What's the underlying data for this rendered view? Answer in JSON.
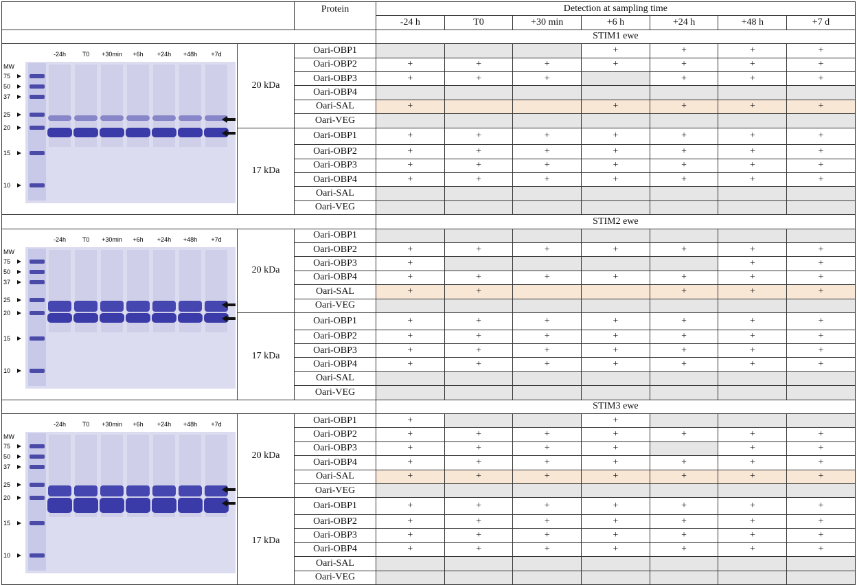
{
  "table": {
    "header": {
      "protein": "Protein",
      "detection": "Detection at sampling time",
      "times": [
        "-24 h",
        "T0",
        "+30 min",
        "+6 h",
        "+24 h",
        "+48 h",
        "+7 d"
      ]
    },
    "sections": [
      {
        "title": "STIM1 ewe",
        "gel": {
          "mw": "MW",
          "markers": [
            "75",
            "50",
            "37",
            "25",
            "20",
            "15",
            "10"
          ],
          "lanes": [
            "-24h",
            "T0",
            "+30min",
            "+6h",
            "+24h",
            "+48h",
            "+7d"
          ]
        },
        "groups": [
          {
            "band": "20 kDa",
            "rows": [
              {
                "protein": "Oari-OBP1",
                "cells": [
                  null,
                  null,
                  null,
                  "+",
                  "+",
                  "+",
                  "+"
                ]
              },
              {
                "protein": "Oari-OBP2",
                "cells": [
                  "+",
                  "+",
                  "+",
                  "+",
                  "+",
                  "+",
                  "+"
                ]
              },
              {
                "protein": "Oari-OBP3",
                "cells": [
                  "+",
                  "+",
                  "+",
                  null,
                  "+",
                  "+",
                  "+"
                ]
              },
              {
                "protein": "Oari-OBP4",
                "cells": [
                  null,
                  null,
                  null,
                  null,
                  null,
                  null,
                  null
                ]
              },
              {
                "protein": "Oari-SAL",
                "highlight": true,
                "cells": [
                  "+",
                  null,
                  null,
                  "+",
                  "+",
                  "+",
                  "+"
                ]
              },
              {
                "protein": "Oari-VEG",
                "cells": [
                  null,
                  null,
                  null,
                  null,
                  null,
                  null,
                  null
                ]
              }
            ]
          },
          {
            "band": "17 kDa",
            "rows": [
              {
                "protein": "Oari-OBP1",
                "cells": [
                  "+",
                  "+",
                  "+",
                  "+",
                  "+",
                  "+",
                  "+"
                ]
              },
              {
                "protein": "Oari-OBP2",
                "cells": [
                  "+",
                  "+",
                  "+",
                  "+",
                  "+",
                  "+",
                  "+"
                ]
              },
              {
                "protein": "Oari-OBP3",
                "cells": [
                  "+",
                  "+",
                  "+",
                  "+",
                  "+",
                  "+",
                  "+"
                ]
              },
              {
                "protein": "Oari-OBP4",
                "cells": [
                  "+",
                  "+",
                  "+",
                  "+",
                  "+",
                  "+",
                  "+"
                ]
              },
              {
                "protein": "Oari-SAL",
                "cells": [
                  null,
                  null,
                  null,
                  null,
                  null,
                  null,
                  null
                ]
              },
              {
                "protein": "Oari-VEG",
                "cells": [
                  null,
                  null,
                  null,
                  null,
                  null,
                  null,
                  null
                ]
              }
            ]
          }
        ]
      },
      {
        "title": "STIM2 ewe",
        "gel": {
          "mw": "MW",
          "markers": [
            "75",
            "50",
            "37",
            "25",
            "20",
            "15",
            "10"
          ],
          "lanes": [
            "-24h",
            "T0",
            "+30min",
            "+6h",
            "+24h",
            "+48h",
            "+7d"
          ]
        },
        "groups": [
          {
            "band": "20 kDa",
            "rows": [
              {
                "protein": "Oari-OBP1",
                "cells": [
                  null,
                  null,
                  null,
                  null,
                  null,
                  null,
                  null
                ]
              },
              {
                "protein": "Oari-OBP2",
                "cells": [
                  "+",
                  "+",
                  "+",
                  "+",
                  "+",
                  "+",
                  "+"
                ]
              },
              {
                "protein": "Oari-OBP3",
                "cells": [
                  "+",
                  null,
                  null,
                  null,
                  null,
                  "+",
                  "+"
                ]
              },
              {
                "protein": "Oari-OBP4",
                "cells": [
                  "+",
                  "+",
                  "+",
                  "+",
                  "+",
                  "+",
                  "+"
                ]
              },
              {
                "protein": "Oari-SAL",
                "highlight": true,
                "cells": [
                  "+",
                  "+",
                  null,
                  null,
                  "+",
                  "+",
                  "+"
                ]
              },
              {
                "protein": "Oari-VEG",
                "cells": [
                  null,
                  null,
                  null,
                  null,
                  null,
                  null,
                  null
                ]
              }
            ]
          },
          {
            "band": "17 kDa",
            "rows": [
              {
                "protein": "Oari-OBP1",
                "cells": [
                  "+",
                  "+",
                  "+",
                  "+",
                  "+",
                  "+",
                  "+"
                ]
              },
              {
                "protein": "Oari-OBP2",
                "cells": [
                  "+",
                  "+",
                  "+",
                  "+",
                  "+",
                  "+",
                  "+"
                ]
              },
              {
                "protein": "Oari-OBP3",
                "cells": [
                  "+",
                  "+",
                  "+",
                  "+",
                  "+",
                  "+",
                  "+"
                ]
              },
              {
                "protein": "Oari-OBP4",
                "cells": [
                  "+",
                  "+",
                  "+",
                  "+",
                  "+",
                  "+",
                  "+"
                ]
              },
              {
                "protein": "Oari-SAL",
                "cells": [
                  null,
                  null,
                  null,
                  null,
                  null,
                  null,
                  null
                ]
              },
              {
                "protein": "Oari-VEG",
                "cells": [
                  null,
                  null,
                  null,
                  null,
                  null,
                  null,
                  null
                ]
              }
            ]
          }
        ]
      },
      {
        "title": "STIM3 ewe",
        "gel": {
          "mw": "MW",
          "markers": [
            "75",
            "50",
            "37",
            "25",
            "20",
            "15",
            "10"
          ],
          "lanes": [
            "-24h",
            "T0",
            "+30min",
            "+6h",
            "+24h",
            "+48h",
            "+7d"
          ]
        },
        "groups": [
          {
            "band": "20 kDa",
            "rows": [
              {
                "protein": "Oari-OBP1",
                "cells": [
                  "+",
                  null,
                  null,
                  "+",
                  null,
                  null,
                  null
                ]
              },
              {
                "protein": "Oari-OBP2",
                "cells": [
                  "+",
                  "+",
                  "+",
                  "+",
                  "+",
                  "+",
                  "+"
                ]
              },
              {
                "protein": "Oari-OBP3",
                "cells": [
                  "+",
                  "+",
                  "+",
                  "+",
                  null,
                  "+",
                  "+"
                ]
              },
              {
                "protein": "Oari-OBP4",
                "cells": [
                  "+",
                  "+",
                  "+",
                  "+",
                  "+",
                  "+",
                  "+"
                ]
              },
              {
                "protein": "Oari-SAL",
                "highlight": true,
                "cells": [
                  "+",
                  "+",
                  "+",
                  "+",
                  "+",
                  "+",
                  "+"
                ]
              },
              {
                "protein": "Oari-VEG",
                "cells": [
                  null,
                  null,
                  null,
                  null,
                  null,
                  null,
                  null
                ]
              }
            ]
          },
          {
            "band": "17 kDa",
            "rows": [
              {
                "protein": "Oari-OBP1",
                "cells": [
                  "+",
                  "+",
                  "+",
                  "+",
                  "+",
                  "+",
                  "+"
                ]
              },
              {
                "protein": "Oari-OBP2",
                "cells": [
                  "+",
                  "+",
                  "+",
                  "+",
                  "+",
                  "+",
                  "+"
                ]
              },
              {
                "protein": "Oari-OBP3",
                "cells": [
                  "+",
                  "+",
                  "+",
                  "+",
                  "+",
                  "+",
                  "+"
                ]
              },
              {
                "protein": "Oari-OBP4",
                "cells": [
                  "+",
                  "+",
                  "+",
                  "+",
                  "+",
                  "+",
                  "+"
                ]
              },
              {
                "protein": "Oari-SAL",
                "cells": [
                  null,
                  null,
                  null,
                  null,
                  null,
                  null,
                  null
                ]
              },
              {
                "protein": "Oari-VEG",
                "cells": [
                  null,
                  null,
                  null,
                  null,
                  null,
                  null,
                  null
                ]
              }
            ]
          }
        ]
      }
    ]
  }
}
